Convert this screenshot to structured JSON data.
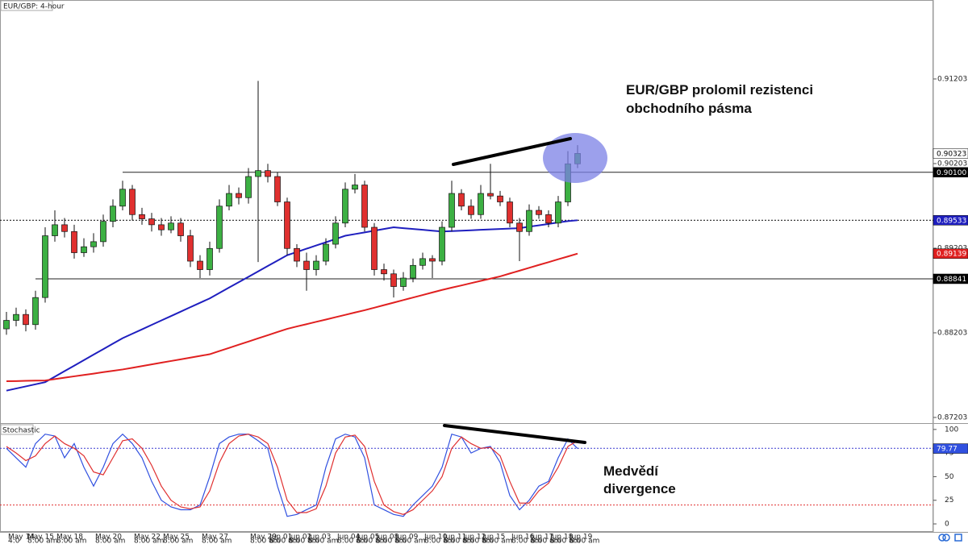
{
  "chart_data": [
    {
      "type": "candlestick",
      "title": "EUR/GBP: 4-hour",
      "categories": [
        null,
        "May 14",
        null,
        "May 15",
        null,
        null,
        "May 18",
        null,
        null,
        null,
        "May 20",
        null,
        null,
        null,
        "May 22",
        null,
        null,
        "May 25",
        null,
        null,
        null,
        "May 27",
        null,
        null,
        null,
        null,
        "May 29",
        null,
        "Jun 01",
        null,
        "Jun 02",
        null,
        "Jun 03",
        null,
        null,
        "Jun 04",
        null,
        "Jun 05",
        null,
        "Jun 08",
        null,
        "Jun 09",
        null,
        null,
        "Jun 10",
        null,
        "Jun 11",
        null,
        "Jun 12",
        null,
        "Jun 15",
        null,
        null,
        "Jun 16",
        null,
        "Jun 17",
        null,
        "Jun 18",
        null,
        "Jun 19"
      ],
      "sub_labels": [
        null,
        "4:0",
        null,
        "8:00 am",
        null,
        null,
        "8:00 am",
        null,
        null,
        null,
        "8:00 am",
        null,
        null,
        null,
        "8:00 am",
        null,
        null,
        "8:00 am",
        null,
        null,
        null,
        "8:00 am",
        null,
        null,
        null,
        null,
        "8:00 am",
        null,
        "8:00 am",
        null,
        "8:00 am",
        null,
        "8:00 am",
        null,
        null,
        "8:00 am",
        null,
        "8:00 am",
        null,
        "8:00 am",
        null,
        "8:00 am",
        null,
        null,
        "8:00 am",
        null,
        "8:00 am",
        null,
        "8:00 am",
        null,
        "8:00 am",
        null,
        null,
        "8:00 am",
        null,
        "8:00 am",
        null,
        "8:00 am",
        null,
        "8:00 am"
      ],
      "open": [
        0.8825,
        0.8835,
        0.8842,
        0.883,
        0.8862,
        0.8935,
        0.8948,
        0.894,
        0.8915,
        0.8922,
        0.8928,
        0.8952,
        0.897,
        0.899,
        0.896,
        0.8955,
        0.8948,
        0.8942,
        0.895,
        0.8935,
        0.8905,
        0.8895,
        0.892,
        0.897,
        0.8985,
        0.898,
        0.9005,
        0.9012,
        0.9005,
        0.8975,
        0.892,
        0.8905,
        0.8895,
        0.8905,
        0.8925,
        0.895,
        0.899,
        0.8995,
        0.8945,
        0.8895,
        0.889,
        0.8875,
        0.8885,
        0.89,
        0.8908,
        0.8905,
        0.8945,
        0.8985,
        0.897,
        0.896,
        0.8985,
        0.8982,
        0.8975,
        0.895,
        0.894,
        0.8965,
        0.896,
        0.895,
        0.8975,
        0.902
      ],
      "high": [
        0.8845,
        0.885,
        0.8848,
        0.887,
        0.8945,
        0.8965,
        0.8956,
        0.8948,
        0.8932,
        0.8938,
        0.896,
        0.8978,
        0.9,
        0.8995,
        0.8968,
        0.8962,
        0.8956,
        0.8958,
        0.8956,
        0.8942,
        0.8912,
        0.8928,
        0.8978,
        0.8995,
        0.8992,
        0.9015,
        0.9118,
        0.902,
        0.901,
        0.898,
        0.8925,
        0.8915,
        0.8912,
        0.8932,
        0.8958,
        0.8998,
        0.9008,
        0.9,
        0.895,
        0.8902,
        0.8895,
        0.8892,
        0.8908,
        0.8915,
        0.8912,
        0.8952,
        0.9,
        0.899,
        0.8978,
        0.8995,
        0.902,
        0.8988,
        0.898,
        0.8956,
        0.8972,
        0.897,
        0.8965,
        0.8982,
        0.9035,
        0.9042
      ],
      "low": [
        0.8818,
        0.8828,
        0.8822,
        0.8824,
        0.8856,
        0.8928,
        0.8933,
        0.8908,
        0.891,
        0.8915,
        0.8922,
        0.8945,
        0.8965,
        0.8953,
        0.8948,
        0.894,
        0.8935,
        0.8938,
        0.8928,
        0.8898,
        0.8885,
        0.8888,
        0.8915,
        0.8965,
        0.8972,
        0.8973,
        0.8904,
        0.8998,
        0.897,
        0.8912,
        0.8898,
        0.887,
        0.8888,
        0.89,
        0.892,
        0.8945,
        0.8985,
        0.894,
        0.8888,
        0.8882,
        0.8862,
        0.887,
        0.888,
        0.8895,
        0.8885,
        0.89,
        0.894,
        0.8965,
        0.8955,
        0.8955,
        0.8978,
        0.897,
        0.8945,
        0.8905,
        0.8935,
        0.8955,
        0.8945,
        0.8945,
        0.897,
        0.9015
      ],
      "close": [
        0.8835,
        0.8842,
        0.883,
        0.8862,
        0.8935,
        0.8948,
        0.894,
        0.8915,
        0.8922,
        0.8928,
        0.8952,
        0.897,
        0.899,
        0.896,
        0.8955,
        0.8948,
        0.8942,
        0.895,
        0.8935,
        0.8905,
        0.8895,
        0.892,
        0.897,
        0.8985,
        0.898,
        0.9005,
        0.9012,
        0.9005,
        0.8975,
        0.892,
        0.8905,
        0.8895,
        0.8905,
        0.8925,
        0.895,
        0.899,
        0.8995,
        0.8945,
        0.8895,
        0.889,
        0.8875,
        0.8885,
        0.89,
        0.8908,
        0.8905,
        0.8945,
        0.8985,
        0.897,
        0.896,
        0.8985,
        0.8982,
        0.8975,
        0.895,
        0.894,
        0.8965,
        0.896,
        0.895,
        0.8975,
        0.902,
        0.90323
      ],
      "up_color": "#3cb043",
      "down_color": "#e0302f",
      "last_marker_color": "#ffffff",
      "overlays": [
        {
          "color": "#1f1fbf",
          "values": [
            0.8752,
            0.87545,
            0.8757,
            0.87595,
            0.8762,
            0.87685,
            0.8775,
            0.87815,
            0.8788,
            0.87945,
            0.8801,
            0.88075,
            0.8814,
            0.88192,
            0.88244,
            0.88297,
            0.88349,
            0.88401,
            0.88453,
            0.88506,
            0.88558,
            0.8861,
            0.88674,
            0.88738,
            0.88801,
            0.88865,
            0.88929,
            0.88993,
            0.89056,
            0.8912,
            0.89158,
            0.89197,
            0.89235,
            0.89273,
            0.89312,
            0.8935,
            0.8937,
            0.8939,
            0.8941,
            0.8943,
            0.8945,
            0.8944,
            0.8943,
            0.8942,
            0.8941,
            0.894,
            0.89405,
            0.8941,
            0.89415,
            0.8942,
            0.89425,
            0.8943,
            0.89435,
            0.8944,
            0.89457,
            0.89473,
            0.8949,
            0.89507,
            0.89523,
            0.89533
          ]
        },
        {
          "color": "#e02020",
          "values": [
            0.87631,
            0.87633,
            0.87636,
            0.87638,
            0.8764,
            0.87656,
            0.87673,
            0.87689,
            0.87705,
            0.87721,
            0.87738,
            0.87754,
            0.8777,
            0.8779,
            0.8781,
            0.8783,
            0.8785,
            0.8787,
            0.8789,
            0.8791,
            0.8793,
            0.8795,
            0.87988,
            0.88025,
            0.88063,
            0.881,
            0.88138,
            0.88175,
            0.88213,
            0.8825,
            0.88278,
            0.88305,
            0.88333,
            0.8836,
            0.88388,
            0.88415,
            0.88443,
            0.8847,
            0.885,
            0.8853,
            0.8856,
            0.8859,
            0.8862,
            0.8865,
            0.8868,
            0.8871,
            0.88737,
            0.88763,
            0.8879,
            0.88817,
            0.88843,
            0.8887,
            0.88904,
            0.88937,
            0.88971,
            0.89005,
            0.89038,
            0.89072,
            0.89105,
            0.89139
          ]
        }
      ],
      "levels": [
        {
          "value": 0.901,
          "label": "0.90100",
          "style": "solid",
          "marker_color": "#000000"
        },
        {
          "value": 0.89533,
          "style": "dotted"
        },
        {
          "value": 0.88841,
          "style": "solid",
          "marker_color": "#000000"
        }
      ],
      "ylim": [
        0.87136,
        0.92136
      ],
      "yticks": [
        0.91203,
        0.90203,
        0.89203,
        0.88203,
        0.87203
      ],
      "annotations": [
        "EUR/GBP prolomil rezistenci",
        "obchodního pásma"
      ]
    },
    {
      "type": "line",
      "title": "Stochastic",
      "series": [
        {
          "color": "#3050e0",
          "values": [
            80,
            70,
            60,
            85,
            95,
            93,
            70,
            85,
            60,
            40,
            60,
            85,
            95,
            85,
            70,
            45,
            25,
            18,
            15,
            15,
            20,
            50,
            85,
            92,
            95,
            95,
            88,
            80,
            40,
            8,
            10,
            15,
            20,
            60,
            90,
            95,
            92,
            70,
            20,
            15,
            10,
            8,
            20,
            30,
            40,
            60,
            95,
            92,
            75,
            80,
            82,
            65,
            30,
            15,
            25,
            40,
            45,
            70,
            90,
            79.77
          ]
        },
        {
          "color": "#e03030",
          "values": [
            82,
            75,
            67,
            72,
            85,
            93,
            85,
            80,
            72,
            55,
            52,
            70,
            88,
            90,
            80,
            62,
            40,
            25,
            18,
            16,
            18,
            35,
            65,
            85,
            93,
            95,
            92,
            85,
            60,
            25,
            12,
            12,
            16,
            40,
            75,
            92,
            94,
            82,
            45,
            20,
            13,
            10,
            15,
            25,
            35,
            50,
            80,
            92,
            85,
            80,
            81,
            72,
            45,
            22,
            22,
            35,
            43,
            60,
            82,
            88
          ]
        }
      ],
      "levels": [
        {
          "value": 80,
          "color": "#3a3ad0"
        },
        {
          "value": 20,
          "color": "#e03030"
        }
      ],
      "ylim": [
        -8.5,
        105
      ],
      "yticks": [
        100,
        75,
        50,
        25,
        0
      ],
      "annotations": [
        "Medvědí",
        "divergence"
      ]
    }
  ]
}
